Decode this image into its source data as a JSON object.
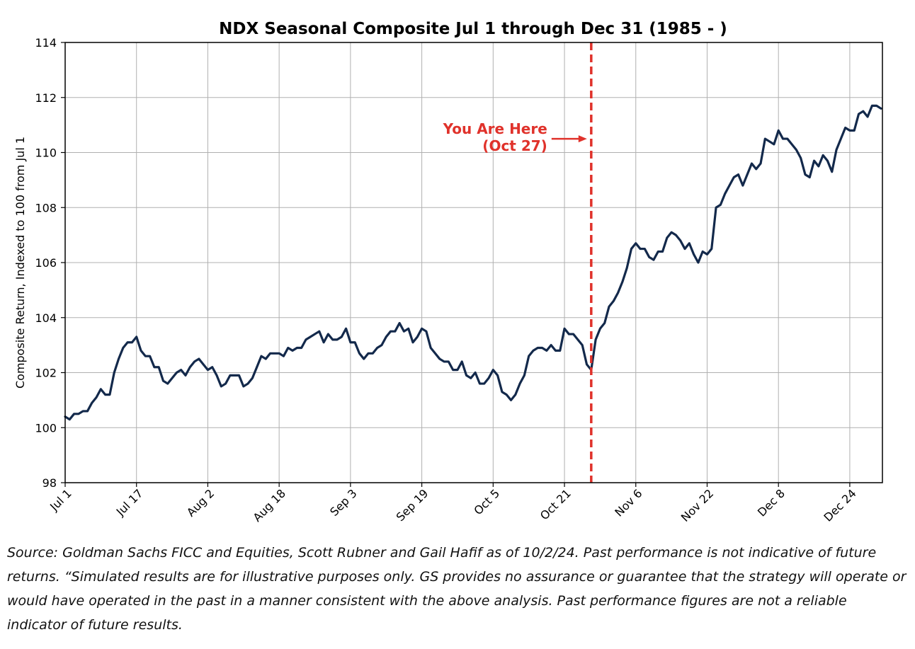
{
  "chart_data": {
    "type": "line",
    "title": "NDX Seasonal Composite Jul 1 through Dec 31 (1985 - )",
    "xlabel": "",
    "ylabel": "Composite Return, Indexed to 100 from Jul 1",
    "ylim": [
      98,
      114
    ],
    "yticks": [
      98,
      100,
      102,
      104,
      106,
      108,
      110,
      112,
      114
    ],
    "xticks": [
      "Jul 1",
      "Jul 17",
      "Aug 2",
      "Aug 18",
      "Sep 3",
      "Sep 19",
      "Oct 5",
      "Oct 21",
      "Nov 6",
      "Nov 22",
      "Dec 8",
      "Dec 24"
    ],
    "grid": true,
    "line_color": "#13294b",
    "series": [
      {
        "name": "",
        "points": [
          [
            "Jul 1",
            100.4
          ],
          [
            "Jul 2",
            100.3
          ],
          [
            "Jul 3",
            100.5
          ],
          [
            "Jul 4",
            100.5
          ],
          [
            "Jul 5",
            100.6
          ],
          [
            "Jul 6",
            100.6
          ],
          [
            "Jul 7",
            100.9
          ],
          [
            "Jul 8",
            101.1
          ],
          [
            "Jul 9",
            101.4
          ],
          [
            "Jul 10",
            101.2
          ],
          [
            "Jul 11",
            101.2
          ],
          [
            "Jul 12",
            102.0
          ],
          [
            "Jul 13",
            102.5
          ],
          [
            "Jul 14",
            102.9
          ],
          [
            "Jul 15",
            103.1
          ],
          [
            "Jul 16",
            103.1
          ],
          [
            "Jul 17",
            103.3
          ],
          [
            "Jul 18",
            102.8
          ],
          [
            "Jul 19",
            102.6
          ],
          [
            "Jul 20",
            102.6
          ],
          [
            "Jul 21",
            102.2
          ],
          [
            "Jul 22",
            102.2
          ],
          [
            "Jul 23",
            101.7
          ],
          [
            "Jul 24",
            101.6
          ],
          [
            "Jul 25",
            101.8
          ],
          [
            "Jul 26",
            102.0
          ],
          [
            "Jul 27",
            102.1
          ],
          [
            "Jul 28",
            101.9
          ],
          [
            "Jul 29",
            102.2
          ],
          [
            "Jul 30",
            102.4
          ],
          [
            "Jul 31",
            102.5
          ],
          [
            "Aug 1",
            102.3
          ],
          [
            "Aug 2",
            102.1
          ],
          [
            "Aug 3",
            102.2
          ],
          [
            "Aug 4",
            101.9
          ],
          [
            "Aug 5",
            101.5
          ],
          [
            "Aug 6",
            101.6
          ],
          [
            "Aug 7",
            101.9
          ],
          [
            "Aug 8",
            101.9
          ],
          [
            "Aug 9",
            101.9
          ],
          [
            "Aug 10",
            101.5
          ],
          [
            "Aug 11",
            101.6
          ],
          [
            "Aug 12",
            101.8
          ],
          [
            "Aug 13",
            102.2
          ],
          [
            "Aug 14",
            102.6
          ],
          [
            "Aug 15",
            102.5
          ],
          [
            "Aug 16",
            102.7
          ],
          [
            "Aug 17",
            102.7
          ],
          [
            "Aug 18",
            102.7
          ],
          [
            "Aug 19",
            102.6
          ],
          [
            "Aug 20",
            102.9
          ],
          [
            "Aug 21",
            102.8
          ],
          [
            "Aug 22",
            102.9
          ],
          [
            "Aug 23",
            102.9
          ],
          [
            "Aug 24",
            103.2
          ],
          [
            "Aug 25",
            103.3
          ],
          [
            "Aug 26",
            103.4
          ],
          [
            "Aug 27",
            103.5
          ],
          [
            "Aug 28",
            103.1
          ],
          [
            "Aug 29",
            103.4
          ],
          [
            "Aug 30",
            103.2
          ],
          [
            "Aug 31",
            103.2
          ],
          [
            "Sep 1",
            103.3
          ],
          [
            "Sep 2",
            103.6
          ],
          [
            "Sep 3",
            103.1
          ],
          [
            "Sep 4",
            103.1
          ],
          [
            "Sep 5",
            102.7
          ],
          [
            "Sep 6",
            102.5
          ],
          [
            "Sep 7",
            102.7
          ],
          [
            "Sep 8",
            102.7
          ],
          [
            "Sep 9",
            102.9
          ],
          [
            "Sep 10",
            103.0
          ],
          [
            "Sep 11",
            103.3
          ],
          [
            "Sep 12",
            103.5
          ],
          [
            "Sep 13",
            103.5
          ],
          [
            "Sep 14",
            103.8
          ],
          [
            "Sep 15",
            103.5
          ],
          [
            "Sep 16",
            103.6
          ],
          [
            "Sep 17",
            103.1
          ],
          [
            "Sep 18",
            103.3
          ],
          [
            "Sep 19",
            103.6
          ],
          [
            "Sep 20",
            103.5
          ],
          [
            "Sep 21",
            102.9
          ],
          [
            "Sep 22",
            102.7
          ],
          [
            "Sep 23",
            102.5
          ],
          [
            "Sep 24",
            102.4
          ],
          [
            "Sep 25",
            102.4
          ],
          [
            "Sep 26",
            102.1
          ],
          [
            "Sep 27",
            102.1
          ],
          [
            "Sep 28",
            102.4
          ],
          [
            "Sep 29",
            101.9
          ],
          [
            "Sep 30",
            101.8
          ],
          [
            "Oct 1",
            102.0
          ],
          [
            "Oct 2",
            101.6
          ],
          [
            "Oct 3",
            101.6
          ],
          [
            "Oct 4",
            101.8
          ],
          [
            "Oct 5",
            102.1
          ],
          [
            "Oct 6",
            101.9
          ],
          [
            "Oct 7",
            101.3
          ],
          [
            "Oct 8",
            101.2
          ],
          [
            "Oct 9",
            101.0
          ],
          [
            "Oct 10",
            101.2
          ],
          [
            "Oct 11",
            101.6
          ],
          [
            "Oct 12",
            101.9
          ],
          [
            "Oct 13",
            102.6
          ],
          [
            "Oct 14",
            102.8
          ],
          [
            "Oct 15",
            102.9
          ],
          [
            "Oct 16",
            102.9
          ],
          [
            "Oct 17",
            102.8
          ],
          [
            "Oct 18",
            103.0
          ],
          [
            "Oct 19",
            102.8
          ],
          [
            "Oct 20",
            102.8
          ],
          [
            "Oct 21",
            103.6
          ],
          [
            "Oct 22",
            103.4
          ],
          [
            "Oct 23",
            103.4
          ],
          [
            "Oct 24",
            103.2
          ],
          [
            "Oct 25",
            103.0
          ],
          [
            "Oct 26",
            102.3
          ],
          [
            "Oct 27",
            102.1
          ],
          [
            "Oct 28",
            103.2
          ],
          [
            "Oct 29",
            103.6
          ],
          [
            "Oct 30",
            103.8
          ],
          [
            "Oct 31",
            104.4
          ],
          [
            "Nov 1",
            104.6
          ],
          [
            "Nov 2",
            104.9
          ],
          [
            "Nov 3",
            105.3
          ],
          [
            "Nov 4",
            105.8
          ],
          [
            "Nov 5",
            106.5
          ],
          [
            "Nov 6",
            106.7
          ],
          [
            "Nov 7",
            106.5
          ],
          [
            "Nov 8",
            106.5
          ],
          [
            "Nov 9",
            106.2
          ],
          [
            "Nov 10",
            106.1
          ],
          [
            "Nov 11",
            106.4
          ],
          [
            "Nov 12",
            106.4
          ],
          [
            "Nov 13",
            106.9
          ],
          [
            "Nov 14",
            107.1
          ],
          [
            "Nov 15",
            107.0
          ],
          [
            "Nov 16",
            106.8
          ],
          [
            "Nov 17",
            106.5
          ],
          [
            "Nov 18",
            106.7
          ],
          [
            "Nov 19",
            106.3
          ],
          [
            "Nov 20",
            106.0
          ],
          [
            "Nov 21",
            106.4
          ],
          [
            "Nov 22",
            106.3
          ],
          [
            "Nov 23",
            106.5
          ],
          [
            "Nov 24",
            108.0
          ],
          [
            "Nov 25",
            108.1
          ],
          [
            "Nov 26",
            108.5
          ],
          [
            "Nov 27",
            108.8
          ],
          [
            "Nov 28",
            109.1
          ],
          [
            "Nov 29",
            109.2
          ],
          [
            "Nov 30",
            108.8
          ],
          [
            "Dec 1",
            109.2
          ],
          [
            "Dec 2",
            109.6
          ],
          [
            "Dec 3",
            109.4
          ],
          [
            "Dec 4",
            109.6
          ],
          [
            "Dec 5",
            110.5
          ],
          [
            "Dec 6",
            110.4
          ],
          [
            "Dec 7",
            110.3
          ],
          [
            "Dec 8",
            110.8
          ],
          [
            "Dec 9",
            110.5
          ],
          [
            "Dec 10",
            110.5
          ],
          [
            "Dec 11",
            110.3
          ],
          [
            "Dec 12",
            110.1
          ],
          [
            "Dec 13",
            109.8
          ],
          [
            "Dec 14",
            109.2
          ],
          [
            "Dec 15",
            109.1
          ],
          [
            "Dec 16",
            109.7
          ],
          [
            "Dec 17",
            109.5
          ],
          [
            "Dec 18",
            109.9
          ],
          [
            "Dec 19",
            109.7
          ],
          [
            "Dec 20",
            109.3
          ],
          [
            "Dec 21",
            110.1
          ],
          [
            "Dec 22",
            110.5
          ],
          [
            "Dec 23",
            110.9
          ],
          [
            "Dec 24",
            110.8
          ],
          [
            "Dec 25",
            110.8
          ],
          [
            "Dec 26",
            111.4
          ],
          [
            "Dec 27",
            111.5
          ],
          [
            "Dec 28",
            111.3
          ],
          [
            "Dec 29",
            111.7
          ],
          [
            "Dec 30",
            111.7
          ],
          [
            "Dec 31",
            111.6
          ]
        ]
      }
    ],
    "marker": {
      "x": "Oct 27",
      "style": "dashed",
      "color": "#e0322b",
      "annotation_line1": "You Are Here",
      "annotation_line2": "(Oct 27)",
      "annotation_y": 110.5
    }
  },
  "source_note": "Source: Goldman Sachs FICC and Equities, Scott Rubner and Gail Hafif as of 10/2/24. Past performance is not indicative of future returns. “Simulated results are for illustrative purposes only. GS provides no assurance or guarantee that the strategy will operate or would have operated in the past in a manner consistent with the above analysis. Past performance figures are not a reliable indicator of future results."
}
